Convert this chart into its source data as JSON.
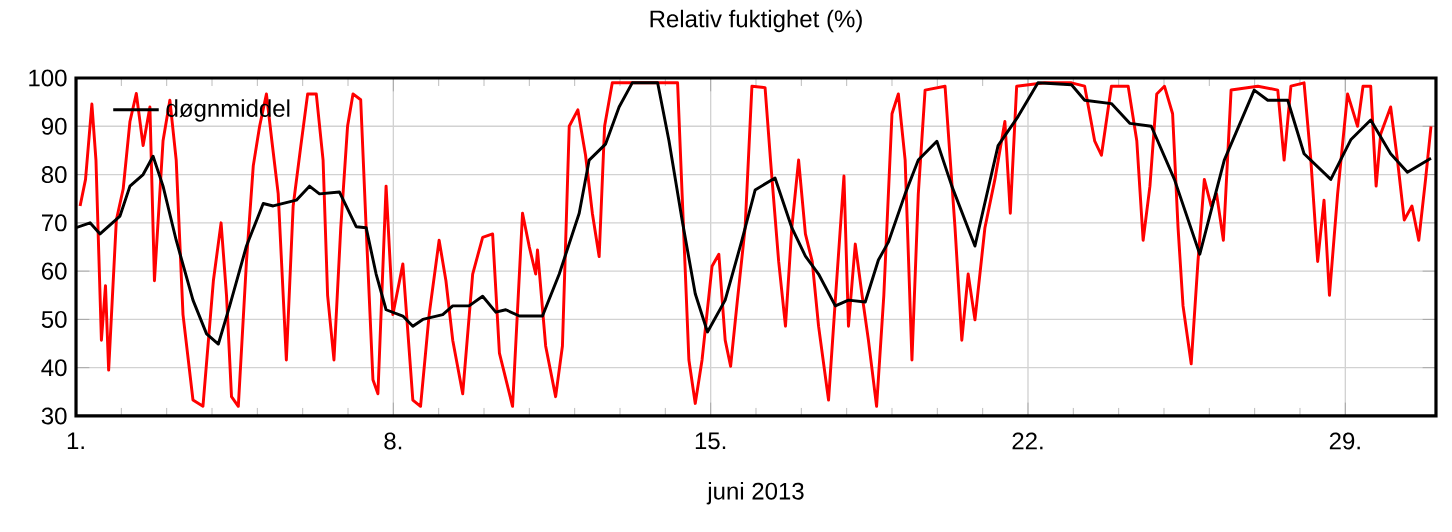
{
  "chart_data": {
    "type": "line",
    "title": "Relativ fuktighet (%)",
    "xlabel": "juni 2013",
    "xlim": [
      1,
      31
    ],
    "ylim": [
      30,
      100
    ],
    "xticks": [
      {
        "value": 1,
        "label": "1."
      },
      {
        "value": 8,
        "label": "8."
      },
      {
        "value": 15,
        "label": "15."
      },
      {
        "value": 22,
        "label": "22."
      },
      {
        "value": 29,
        "label": "29."
      }
    ],
    "yticks": [
      30,
      40,
      50,
      60,
      70,
      80,
      90,
      100
    ],
    "grid": true,
    "legend": "top left",
    "marker": "none",
    "line_style": "solid",
    "series": [
      {
        "color": "#ff0000",
        "x": [
          1.09,
          1.21,
          1.35,
          1.44,
          1.56,
          1.65,
          1.72,
          1.89,
          2.04,
          2.19,
          2.33,
          2.48,
          2.63,
          2.73,
          2.92,
          3.07,
          3.21,
          3.36,
          3.58,
          3.8,
          4.03,
          4.2,
          4.32,
          4.43,
          4.58,
          4.76,
          4.91,
          5.05,
          5.2,
          5.32,
          5.46,
          5.64,
          5.79,
          5.96,
          6.11,
          6.3,
          6.45,
          6.55,
          6.69,
          6.84,
          6.99,
          7.11,
          7.28,
          7.4,
          7.55,
          7.66,
          7.84,
          7.99,
          8.21,
          8.43,
          8.6,
          8.79,
          9.01,
          9.16,
          9.31,
          9.53,
          9.75,
          9.97,
          10.19,
          10.34,
          10.63,
          10.85,
          11.0,
          11.14,
          11.18,
          11.36,
          11.58,
          11.73,
          11.88,
          12.07,
          12.24,
          12.39,
          12.54,
          12.66,
          12.83,
          13.27,
          13.71,
          14.27,
          14.37,
          14.52,
          14.66,
          14.81,
          15.03,
          15.18,
          15.32,
          15.44,
          15.59,
          15.76,
          15.91,
          16.2,
          16.32,
          16.5,
          16.65,
          16.79,
          16.94,
          17.09,
          17.24,
          17.38,
          17.6,
          17.75,
          17.94,
          18.04,
          18.19,
          18.34,
          18.48,
          18.66,
          18.82,
          19.0,
          19.14,
          19.29,
          19.44,
          19.58,
          19.73,
          20.17,
          20.39,
          20.54,
          20.68,
          20.83,
          21.05,
          21.27,
          21.49,
          21.61,
          21.75,
          22.37,
          22.96,
          23.25,
          23.47,
          23.62,
          23.84,
          24.21,
          24.4,
          24.54,
          24.69,
          24.84,
          25.01,
          25.19,
          25.31,
          25.42,
          25.6,
          25.75,
          25.89,
          26.04,
          26.16,
          26.31,
          26.48,
          27.07,
          27.51,
          27.65,
          27.8,
          28.09,
          28.24,
          28.39,
          28.53,
          28.65,
          28.83,
          29.05,
          29.27,
          29.39,
          29.56,
          29.68,
          29.78,
          30.0,
          30.15,
          30.3,
          30.47,
          30.62,
          30.77,
          30.89
        ],
        "values": [
          73.5,
          79,
          94.6,
          83,
          45.7,
          57,
          39.5,
          70.6,
          77,
          91,
          96.8,
          86,
          94,
          58,
          87,
          95.4,
          83,
          51,
          33.3,
          32,
          58,
          70,
          55,
          34,
          32,
          62,
          81.8,
          90,
          96.7,
          87,
          76,
          41.6,
          73.5,
          86,
          96.7,
          96.7,
          83,
          55,
          41.6,
          69,
          90,
          96.7,
          95.5,
          69,
          37.5,
          34.6,
          77.6,
          51,
          61.5,
          33.3,
          32,
          51,
          66.4,
          58,
          45.7,
          34.6,
          59.4,
          67,
          67.7,
          43,
          32,
          72,
          65,
          59.4,
          64.4,
          44.5,
          34,
          44.5,
          90,
          93.4,
          84,
          72,
          63,
          90,
          99,
          99,
          99,
          99,
          76,
          41.6,
          32.6,
          41.6,
          61,
          63.5,
          45.7,
          40.3,
          54,
          69,
          98.3,
          98,
          83,
          62,
          48.6,
          69,
          83,
          67.7,
          62,
          48.6,
          33.3,
          54,
          79.7,
          48.6,
          65.6,
          55,
          45.7,
          32,
          55,
          92.6,
          96.7,
          83,
          41.6,
          76,
          97.5,
          98.3,
          69,
          45.7,
          59.4,
          49.9,
          69,
          79,
          91,
          72,
          98.3,
          99,
          99,
          98.3,
          87,
          84,
          98.3,
          98.3,
          87,
          66.4,
          77.6,
          96.7,
          98.3,
          92.6,
          69,
          52.8,
          40.8,
          62,
          79,
          73.5,
          76,
          66.4,
          97.5,
          98.3,
          97.5,
          83,
          98.3,
          99,
          83,
          62,
          74.7,
          55,
          76,
          96.7,
          90,
          98.3,
          98.3,
          77.6,
          88.4,
          94,
          83,
          70.6,
          73.5,
          66.4,
          79,
          90
        ]
      },
      {
        "name": "døgnmiddel",
        "color": "#000000",
        "x": [
          1.0,
          1.31,
          1.53,
          1.97,
          2.19,
          2.48,
          2.7,
          2.92,
          3.21,
          3.58,
          3.88,
          4.14,
          4.39,
          4.76,
          5.13,
          5.35,
          5.86,
          6.15,
          6.37,
          6.81,
          7.18,
          7.4,
          7.62,
          7.84,
          8.21,
          8.43,
          8.65,
          9.09,
          9.31,
          9.67,
          9.97,
          10.26,
          10.48,
          10.78,
          11.29,
          11.66,
          12.1,
          12.32,
          12.68,
          12.98,
          13.27,
          13.83,
          14.08,
          14.37,
          14.66,
          14.93,
          15.32,
          15.69,
          15.98,
          16.42,
          16.79,
          17.09,
          17.38,
          17.75,
          18.04,
          18.41,
          18.7,
          18.92,
          19.29,
          19.58,
          19.99,
          20.32,
          20.83,
          21.34,
          21.78,
          22.22,
          22.96,
          23.25,
          23.84,
          24.25,
          24.72,
          25.23,
          25.79,
          26.33,
          26.99,
          27.29,
          27.73,
          28.09,
          28.68,
          29.12,
          29.56,
          30.0,
          30.37,
          30.89
        ],
        "values": [
          69,
          70,
          67.7,
          71.4,
          77.6,
          80,
          83.8,
          77.6,
          66.4,
          54,
          47,
          44.9,
          52.8,
          65.2,
          74,
          73.5,
          74.7,
          77.6,
          76,
          76.4,
          69.2,
          69,
          59.4,
          52,
          50.7,
          48.6,
          50,
          51,
          52.8,
          52.8,
          54.8,
          51.5,
          52,
          50.7,
          50.7,
          59.4,
          72,
          83,
          86.3,
          94,
          99,
          99,
          87,
          70.6,
          55.3,
          47.4,
          54,
          66.4,
          76.8,
          79.3,
          69,
          63.1,
          59.4,
          52.8,
          54,
          53.6,
          62.3,
          66,
          76,
          83,
          86.9,
          77.6,
          65.2,
          86,
          92,
          99,
          98.6,
          95.4,
          94.7,
          90.6,
          90,
          79,
          63.5,
          83,
          97.5,
          95.4,
          95.4,
          84.3,
          79,
          87.2,
          91.3,
          84.3,
          80.5,
          83.4
        ]
      }
    ]
  }
}
